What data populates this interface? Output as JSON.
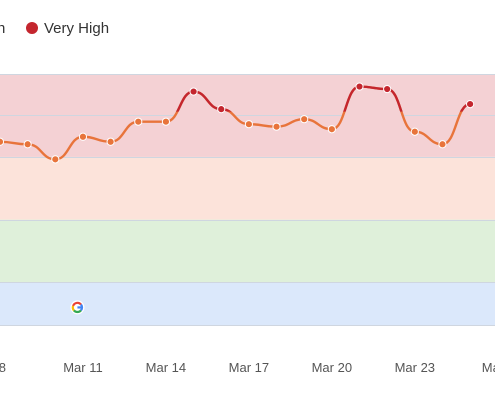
{
  "legend": {
    "items": [
      {
        "label": "h",
        "color": "#e8743b"
      },
      {
        "label": "Very High",
        "color": "#c4262e"
      }
    ]
  },
  "icons": {
    "google": "google-g-icon"
  },
  "colors": {
    "bands": [
      "#dbe8fb",
      "#dff0da",
      "#fce3da",
      "#f4d1d4"
    ],
    "band_lines": "#cfd6e0",
    "high_line": "#e8743b",
    "very_high_line": "#c4262e",
    "very_high_threshold": 85
  },
  "chart_data": {
    "type": "line",
    "x_ticks": [
      "8",
      "Mar 11",
      "Mar 14",
      "Mar 17",
      "Mar 20",
      "Mar 23",
      "Ma"
    ],
    "legend_position": "top-left",
    "grid": true,
    "ylim": [
      0,
      100
    ],
    "bands": [
      {
        "from": 0,
        "to": 17
      },
      {
        "from": 17,
        "to": 42
      },
      {
        "from": 42,
        "to": 67
      },
      {
        "from": 67,
        "to": 100
      }
    ],
    "series": [
      {
        "name": "Very High",
        "x": [
          8,
          9,
          10,
          11,
          12,
          13,
          14,
          15,
          16,
          17,
          18,
          19,
          20,
          21,
          22,
          23,
          24,
          25
        ],
        "y": [
          73,
          72,
          66,
          75,
          73,
          81,
          81,
          93,
          86,
          80,
          79,
          82,
          78,
          95,
          94,
          77,
          72,
          88
        ]
      }
    ],
    "markers": [
      {
        "x": 10.8,
        "y": 7,
        "icon": "google"
      }
    ]
  }
}
